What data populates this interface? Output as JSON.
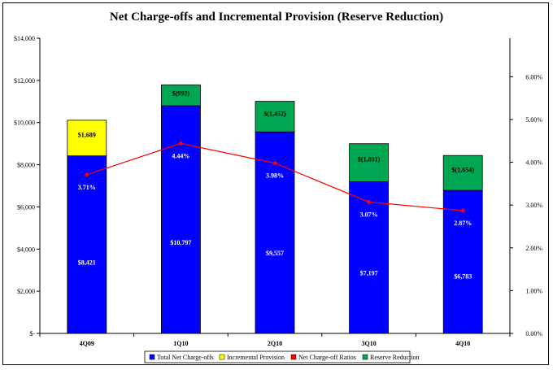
{
  "chart_data": {
    "type": "bar",
    "title": "Net Charge-offs and Incremental Provision (Reserve Reduction)",
    "categories": [
      "4Q09",
      "1Q10",
      "2Q10",
      "3Q10",
      "4Q10"
    ],
    "stacked": true,
    "series": [
      {
        "name": "Total Net Charge-offs",
        "type": "bar",
        "color": "#0000ff",
        "values": [
          8421,
          10797,
          9557,
          7197,
          6783
        ],
        "labels": [
          "$8,421",
          "$10,797",
          "$9,557",
          "$7,197",
          "$6,783"
        ]
      },
      {
        "name": "Incremental Provision",
        "type": "bar",
        "color": "#ffff00",
        "values": [
          1689,
          null,
          null,
          null,
          null
        ],
        "labels": [
          "$1,689",
          "",
          "",
          "",
          ""
        ]
      },
      {
        "name": "Net Charge-off Ratios",
        "type": "line",
        "axis": "right",
        "color": "#ff0000",
        "values": [
          3.71,
          4.44,
          3.98,
          3.07,
          2.87
        ],
        "labels": [
          "3.71%",
          "4.44%",
          "3.98%",
          "3.07%",
          "2.87%"
        ]
      },
      {
        "name": "Reserve Reduction",
        "type": "bar",
        "color": "#00a651",
        "values": [
          null,
          992,
          1452,
          1801,
          1654
        ],
        "labels": [
          "",
          "$(992)",
          "$(1,452)",
          "$(1,801)",
          "$(1,654)"
        ]
      }
    ],
    "y_left": {
      "ylim": [
        0,
        14000
      ],
      "ticks": [
        0,
        2000,
        4000,
        6000,
        8000,
        10000,
        12000,
        14000
      ],
      "tick_labels": [
        "$-",
        "$2,000",
        "$4,000",
        "$6,000",
        "$8,000",
        "$10,000",
        "$12,000",
        "$14,000"
      ]
    },
    "y_right": {
      "ylim": [
        0,
        6.9
      ],
      "ticks": [
        0,
        1,
        2,
        3,
        4,
        5,
        6
      ],
      "tick_labels": [
        "0.00%",
        "1.00%",
        "2.00%",
        "3.00%",
        "4.00%",
        "5.00%",
        "6.00%"
      ]
    },
    "grid": false,
    "legend_position": "bottom"
  }
}
